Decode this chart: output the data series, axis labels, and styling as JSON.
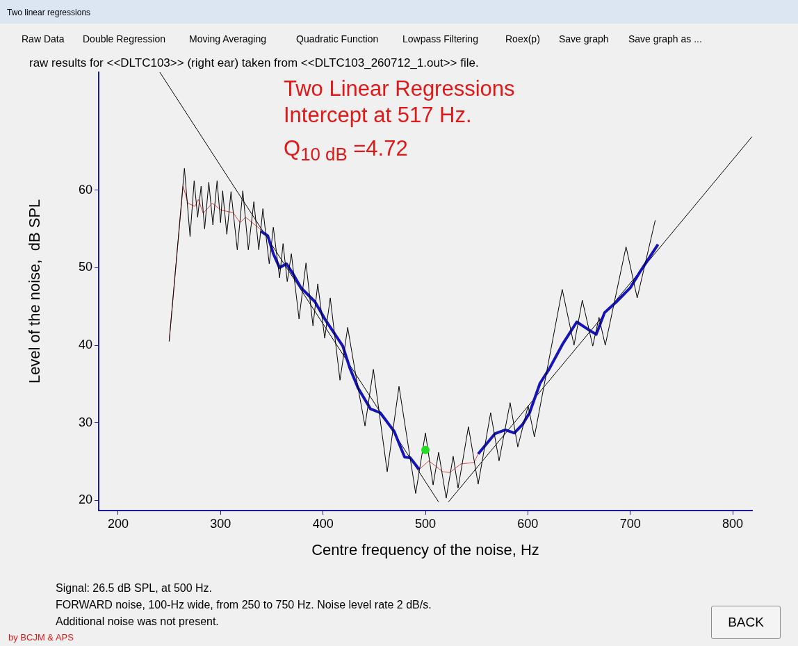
{
  "chart_data": {
    "type": "line",
    "title": "Two Linear Regressions",
    "subtitle": "Intercept at 517 Hz.",
    "xlabel": "Centre frequency of the noise, Hz",
    "ylabel": "Level of the noise,  dB SPL",
    "xlim": [
      181,
      819
    ],
    "ylim": [
      18.7,
      75.2
    ],
    "xticks": [
      200,
      300,
      400,
      500,
      600,
      700,
      800
    ],
    "yticks": [
      20,
      30,
      40,
      50,
      60
    ],
    "grid": false,
    "legend": false,
    "marker": "none",
    "series": [
      {
        "color": "#000000",
        "x": [
          249.8,
          264.7,
          270.2,
          274.2,
          277.6,
          281.0,
          284.4,
          288.5,
          292.5,
          296.6,
          300.0,
          302.0,
          306.1,
          310.2,
          316.3,
          321.7,
          327.1,
          332.5,
          337.3,
          341.3,
          347.5,
          351.5,
          357.6,
          361.0,
          365.1,
          369.1,
          376.6,
          383.4,
          390.2,
          394.9,
          401.7,
          407.1,
          416.6,
          424.1,
          432.2,
          441.0,
          449.2,
          462.7,
          474.2,
          490.5,
          500.0,
          507.5,
          512.9,
          520.3,
          527.1,
          531.9,
          542.0,
          551.5,
          563.7,
          571.9,
          582.7,
          590.2,
          600.3,
          606.4,
          633.6,
          645.1,
          653.2,
          663.4,
          669.5,
          675.6,
          695.9,
          706.8,
          724.4
        ],
        "values": [
          40.5,
          62.8,
          54.0,
          61.2,
          56.5,
          60.5,
          55.0,
          61.0,
          55.5,
          61.2,
          55.8,
          59.9,
          54.3,
          59.8,
          52.3,
          59.9,
          52.3,
          58.5,
          52.3,
          57.6,
          50.5,
          55.2,
          48.7,
          53.1,
          48.2,
          51.8,
          43.4,
          50.6,
          42.5,
          47.9,
          40.9,
          46.1,
          35.5,
          42.3,
          36.0,
          29.6,
          36.9,
          23.7,
          34.7,
          20.9,
          28.7,
          22.0,
          26.2,
          20.3,
          25.7,
          21.6,
          29.5,
          22.1,
          31.3,
          25.1,
          32.6,
          26.9,
          32.2,
          28.2,
          47.2,
          40.0,
          45.8,
          39.9,
          43.6,
          40.0,
          52.7,
          46.1,
          56.1
        ]
      },
      {
        "color": "#d04848",
        "x": [
          249.8,
          263.4,
          268.1,
          274.9,
          278.3,
          283.0,
          291.9,
          300.7,
          312.2,
          319.0,
          324.4,
          339.3
        ],
        "values": [
          40.5,
          60.5,
          58.3,
          57.9,
          58.8,
          57.0,
          58.3,
          57.4,
          57.1,
          55.8,
          56.5,
          54.9
        ]
      },
      {
        "color": "#d04848",
        "x": [
          493.9,
          503.4,
          517.0,
          523.7,
          534.6,
          547.5,
          551.5
        ],
        "values": [
          24.0,
          25.1,
          23.7,
          23.6,
          24.7,
          24.9,
          26.0
        ]
      },
      {
        "color": "#1414b8",
        "x": [
          339.3,
          346.1,
          351.5,
          357.6,
          364.4,
          371.2,
          378.6,
          392.2,
          401.7,
          419.3,
          426.1,
          434.2,
          446.4,
          455.9,
          469.5,
          479.7,
          485.1,
          493.9
        ],
        "values": [
          54.7,
          54.1,
          51.8,
          50.0,
          50.5,
          49.1,
          47.4,
          45.6,
          43.4,
          39.9,
          37.1,
          34.5,
          31.8,
          31.3,
          28.9,
          25.6,
          25.5,
          24.0
        ]
      },
      {
        "color": "#1414b8",
        "x": [
          551.5,
          567.8,
          578.0,
          586.8,
          594.9,
          601.7,
          611.9,
          620.7,
          634.2,
          647.8,
          659.3,
          666.8,
          674.9,
          686.5,
          700.0,
          710.2,
          727.1
        ],
        "values": [
          26.0,
          28.6,
          29.1,
          28.7,
          29.8,
          31.3,
          35.1,
          36.9,
          40.2,
          43.0,
          42.0,
          41.4,
          44.2,
          45.6,
          47.4,
          49.6,
          53.0
        ]
      },
      {
        "color": "#000000",
        "x": [
          240.6,
          512.9
        ],
        "values": [
          75.2,
          19.8
        ]
      },
      {
        "color": "#000000",
        "x": [
          522.4,
          819
        ],
        "values": [
          19.8,
          66.9
        ]
      },
      {
        "type": "scatter",
        "color": "#22dd22",
        "marker": "circle",
        "x": [
          500
        ],
        "values": [
          26.5
        ]
      }
    ],
    "annotations": [
      "Two linear regressions",
      "Raw Data",
      "Double Regression",
      "Moving Averaging",
      "Quadratic Function",
      "Lowpass Filtering",
      "Roex(p)",
      "Save graph",
      "Save graph as ...",
      "raw results for <<DLTC103>> (right ear) taken from <<DLTC103_260712_1.out>> file.",
      "Q$_{10 dB}$  =4.72",
      "Signal: 26.5  dB SPL,   at  500 Hz.",
      "FORWARD noise, 100-Hz wide, from 250 to 750 Hz. Noise level rate 2  dB/s.",
      "Additional noise was not present.",
      "by BCJM & APS",
      "BACK"
    ]
  }
}
